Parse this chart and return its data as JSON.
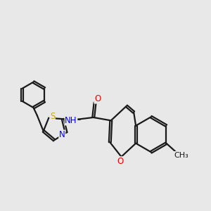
{
  "background_color": "#e8e8e8",
  "bond_color": "#1a1a1a",
  "nitrogen_color": "#0000ee",
  "oxygen_color": "#ee0000",
  "sulfur_color": "#ccaa00",
  "methyl_color": "#1a1a1a",
  "line_width": 1.6,
  "font_size": 8.5,
  "xlim": [
    0,
    10
  ],
  "ylim": [
    0,
    10
  ]
}
